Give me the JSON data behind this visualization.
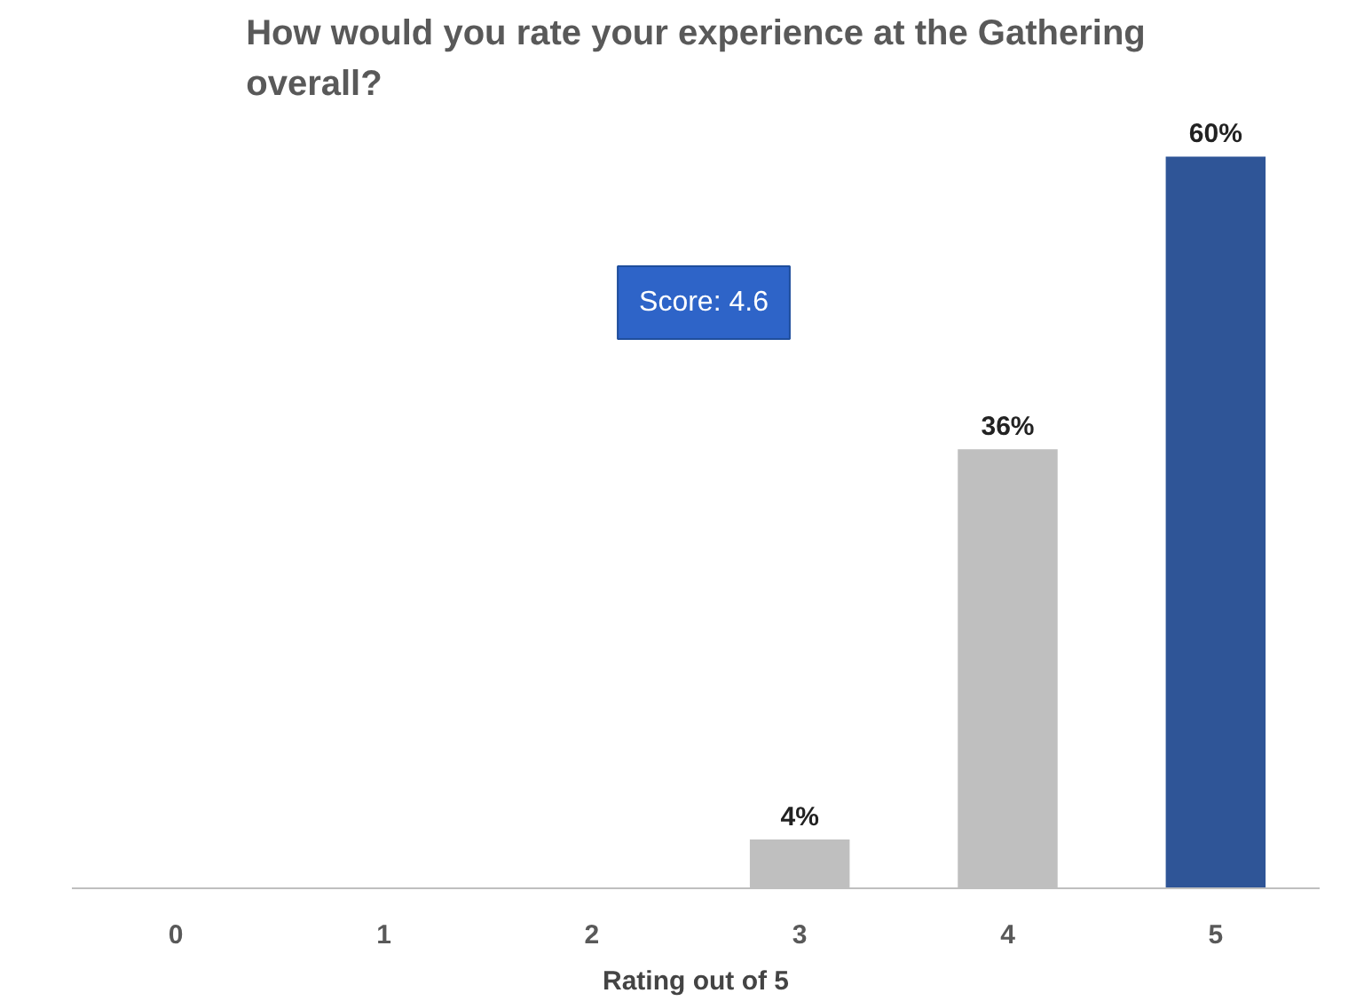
{
  "chart_data": {
    "type": "bar",
    "title": "How would you rate your experience at the Gathering overall?",
    "xlabel": "Rating out of 5",
    "categories": [
      "0",
      "1",
      "2",
      "3",
      "4",
      "5"
    ],
    "values": [
      0,
      0,
      0,
      4,
      36,
      60
    ],
    "colors": [
      "#bfbfbf",
      "#bfbfbf",
      "#bfbfbf",
      "#bfbfbf",
      "#bfbfbf",
      "#2f5597"
    ],
    "value_labels": [
      null,
      null,
      null,
      "4%",
      "36%",
      "60%"
    ],
    "annotations": [
      "Score: 4.6"
    ],
    "grid": false
  }
}
